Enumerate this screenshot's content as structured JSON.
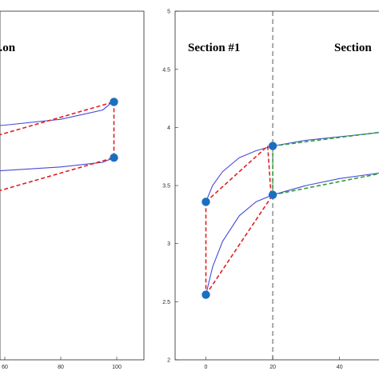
{
  "colors": {
    "curve": "#4a4ad8",
    "red_dash": "#e02020",
    "green_dash": "#2aa03a",
    "marker": "#1a6fc0",
    "divider": "#555555"
  },
  "chart_data": [
    {
      "type": "line",
      "panel": "left",
      "title": "...on",
      "xlim": [
        0,
        105
      ],
      "x_tick_labels": [
        "60",
        "80",
        "100"
      ],
      "series": [
        {
          "role": "upper-curve",
          "x": [
            0,
            20,
            40,
            60,
            80,
            95,
            98.5
          ],
          "y": [
            3.95,
            3.97,
            3.99,
            4.02,
            4.07,
            4.15,
            4.22
          ]
        },
        {
          "role": "lower-curve",
          "x": [
            0,
            20,
            40,
            60,
            80,
            95,
            99
          ],
          "y": [
            3.55,
            3.58,
            3.6,
            3.63,
            3.66,
            3.7,
            3.74
          ]
        },
        {
          "role": "dashed-upper",
          "style": "red-dashed",
          "x": [
            40,
            99
          ],
          "y": [
            3.81,
            4.22
          ]
        },
        {
          "role": "dashed-lower",
          "style": "red-dashed",
          "x": [
            40,
            99
          ],
          "y": [
            3.33,
            3.74
          ]
        },
        {
          "role": "vertical-link",
          "style": "red-dashed",
          "x": [
            99,
            99
          ],
          "y": [
            4.22,
            3.74
          ]
        }
      ],
      "markers": [
        {
          "x": 99,
          "y": 4.22
        },
        {
          "x": 99,
          "y": 3.74
        }
      ]
    },
    {
      "type": "line",
      "panel": "right",
      "titles": [
        "Section  #1",
        "Section"
      ],
      "xlim": [
        -3,
        60
      ],
      "ylim": [
        2,
        5
      ],
      "x_tick_labels": [
        "0",
        "20",
        "40"
      ],
      "y_tick_labels": [
        "2",
        "2.5",
        "3",
        "3.5",
        "4",
        "4.5",
        "5"
      ],
      "divider_x": 20,
      "series": [
        {
          "role": "upper-curve",
          "x": [
            0,
            2,
            5,
            10,
            15,
            20,
            30,
            40,
            50,
            55
          ],
          "y": [
            3.36,
            3.5,
            3.62,
            3.74,
            3.8,
            3.84,
            3.89,
            3.92,
            3.95,
            3.97
          ]
        },
        {
          "role": "lower-curve",
          "x": [
            0,
            2,
            5,
            10,
            15,
            20,
            30,
            40,
            50,
            55
          ],
          "y": [
            2.56,
            2.8,
            3.02,
            3.24,
            3.36,
            3.42,
            3.5,
            3.56,
            3.6,
            3.62
          ]
        },
        {
          "role": "red-upper",
          "style": "red-dashed",
          "x": [
            0,
            18.5
          ],
          "y": [
            3.36,
            3.84
          ]
        },
        {
          "role": "red-lower",
          "style": "red-dashed",
          "x": [
            0,
            20
          ],
          "y": [
            2.56,
            3.42
          ]
        },
        {
          "role": "red-vertical-left",
          "style": "red-dashed",
          "x": [
            0,
            0
          ],
          "y": [
            3.36,
            2.56
          ]
        },
        {
          "role": "red-vertical-mid",
          "style": "red-dashed",
          "x": [
            18.5,
            19.5
          ],
          "y": [
            3.84,
            3.42
          ]
        },
        {
          "role": "green-upper",
          "style": "green-dashed",
          "x": [
            20,
            55
          ],
          "y": [
            3.84,
            3.97
          ]
        },
        {
          "role": "green-lower",
          "style": "green-dashed",
          "x": [
            20,
            55
          ],
          "y": [
            3.42,
            3.62
          ]
        },
        {
          "role": "green-vertical",
          "style": "green-dashed",
          "x": [
            20,
            20
          ],
          "y": [
            3.84,
            3.42
          ]
        }
      ],
      "markers": [
        {
          "x": 0,
          "y": 3.36
        },
        {
          "x": 0,
          "y": 2.56
        },
        {
          "x": 20,
          "y": 3.84
        },
        {
          "x": 20,
          "y": 3.42
        }
      ]
    }
  ]
}
